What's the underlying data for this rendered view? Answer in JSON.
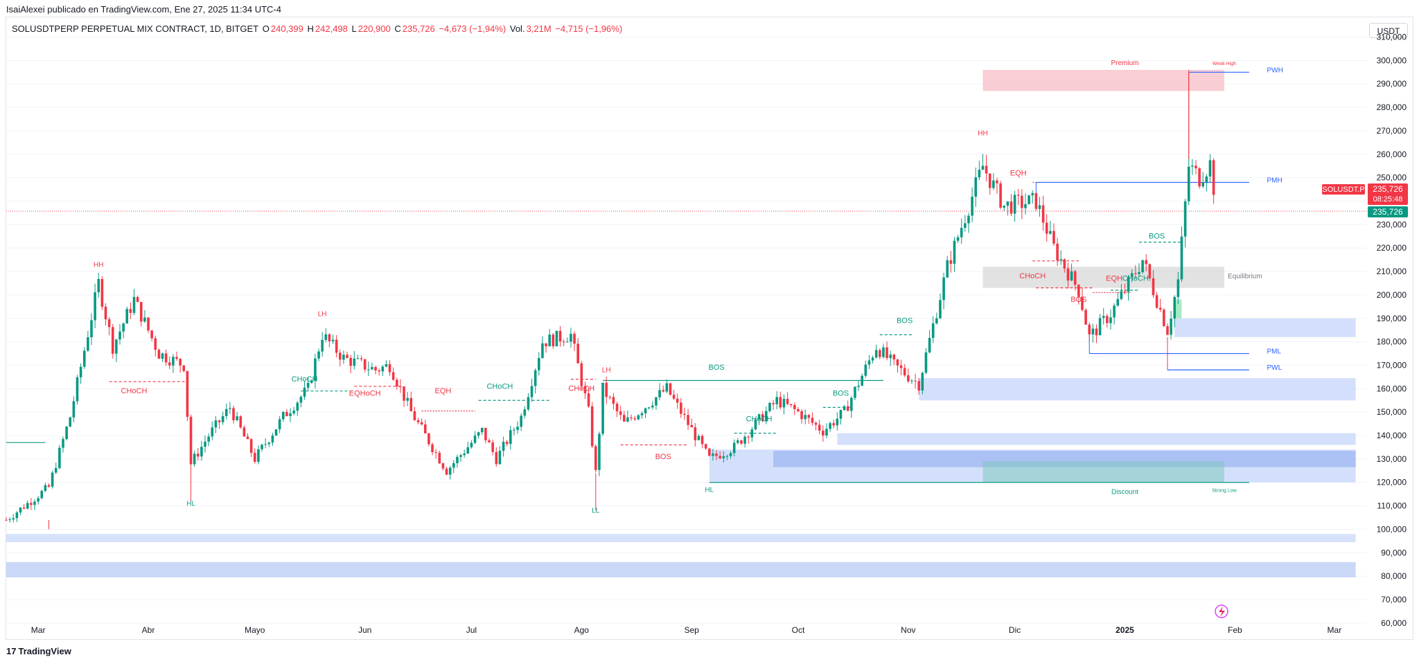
{
  "header": {
    "published_line": "IsaiAlexei publicado en TradingView.com, Ene 27, 2025 11:34 UTC-4",
    "symbol_line": "SOLUSDTPERP PERPETUAL MIX CONTRACT, 1D, BITGET",
    "ohlc": {
      "o_label": "O",
      "o_value": "240,399",
      "h_label": "H",
      "h_value": "242,498",
      "l_label": "L",
      "l_value": "220,900",
      "c_label": "C",
      "c_value": "235,726",
      "change": "−4,673 (−1,94%)"
    },
    "vol_label": "Vol.",
    "vol_value": "3,21M",
    "vol_change": "−4,715 (−1,96%)",
    "currency_button": "USDT"
  },
  "footer": {
    "logo_text": "TradingView",
    "logo_mark": "17"
  },
  "colors": {
    "up": "#089981",
    "down": "#f23645",
    "blue_line": "#2962ff",
    "premium_zone": "#f8c6cc",
    "equilibrium_zone": "#d6d6d6",
    "ob_zone": "#c5d5f9",
    "ob_dark": "#8aa8ef"
  },
  "chart_data": {
    "type": "candlestick",
    "symbol": "SOLUSDTPERP",
    "timeframe": "1D",
    "y_axis": {
      "ticks": [
        "310,000",
        "300,000",
        "290,000",
        "280,000",
        "270,000",
        "260,000",
        "250,000",
        "240,000",
        "230,000",
        "220,000",
        "210,000",
        "200,000",
        "190,000",
        "180,000",
        "170,000",
        "160,000",
        "150,000",
        "140,000",
        "130,000",
        "120,000",
        "110,000",
        "100,000",
        "90,000",
        "80,000",
        "70,000",
        "60,000"
      ],
      "tick_values": [
        310,
        300,
        290,
        280,
        270,
        260,
        250,
        240,
        230,
        220,
        210,
        200,
        190,
        180,
        170,
        160,
        150,
        140,
        130,
        120,
        110,
        100,
        90,
        80,
        70,
        60
      ],
      "range": [
        57,
        314
      ]
    },
    "x_axis": {
      "ticks": [
        "Mar",
        "Abr",
        "Mayo",
        "Jun",
        "Jul",
        "Ago",
        "Sep",
        "Oct",
        "Nov",
        "Dic",
        "2025",
        "Feb",
        "Mar"
      ],
      "tick_dates": [
        "2024-03-01",
        "2024-04-01",
        "2024-05-01",
        "2024-06-01",
        "2024-07-01",
        "2024-08-01",
        "2024-09-01",
        "2024-10-01",
        "2024-11-01",
        "2024-12-01",
        "2025-01-01",
        "2025-02-01",
        "2025-03-01"
      ],
      "range": [
        "2024-02-21",
        "2025-03-10"
      ]
    },
    "price_path": [
      [
        "2024-02-21",
        104
      ],
      [
        "2024-03-04",
        118
      ],
      [
        "2024-03-10",
        148
      ],
      [
        "2024-03-18",
        205
      ],
      [
        "2024-03-22",
        178
      ],
      [
        "2024-03-28",
        198
      ],
      [
        "2024-04-04",
        175
      ],
      [
        "2024-04-11",
        170
      ],
      [
        "2024-04-13",
        128
      ],
      [
        "2024-04-18",
        140
      ],
      [
        "2024-04-24",
        152
      ],
      [
        "2024-05-01",
        130
      ],
      [
        "2024-05-09",
        148
      ],
      [
        "2024-05-16",
        160
      ],
      [
        "2024-05-20",
        183
      ],
      [
        "2024-05-26",
        173
      ],
      [
        "2024-06-04",
        168
      ],
      [
        "2024-06-08",
        170
      ],
      [
        "2024-06-14",
        150
      ],
      [
        "2024-06-24",
        125
      ],
      [
        "2024-07-04",
        142
      ],
      [
        "2024-07-08",
        130
      ],
      [
        "2024-07-15",
        148
      ],
      [
        "2024-07-21",
        180
      ],
      [
        "2024-07-29",
        183
      ],
      [
        "2024-08-03",
        150
      ],
      [
        "2024-08-05",
        124
      ],
      [
        "2024-08-07",
        160
      ],
      [
        "2024-08-13",
        145
      ],
      [
        "2024-08-25",
        160
      ],
      [
        "2024-09-06",
        130
      ],
      [
        "2024-09-13",
        135
      ],
      [
        "2024-09-25",
        155
      ],
      [
        "2024-10-01",
        150
      ],
      [
        "2024-10-08",
        142
      ],
      [
        "2024-10-14",
        150
      ],
      [
        "2024-10-23",
        178
      ],
      [
        "2024-10-28",
        170
      ],
      [
        "2024-11-04",
        162
      ],
      [
        "2024-11-12",
        212
      ],
      [
        "2024-11-22",
        255
      ],
      [
        "2024-11-28",
        238
      ],
      [
        "2024-12-07",
        240
      ],
      [
        "2024-12-12",
        220
      ],
      [
        "2024-12-19",
        202
      ],
      [
        "2024-12-22",
        182
      ],
      [
        "2024-12-28",
        192
      ],
      [
        "2025-01-06",
        215
      ],
      [
        "2025-01-13",
        185
      ],
      [
        "2025-01-16",
        206
      ],
      [
        "2025-01-19",
        255
      ],
      [
        "2025-01-22",
        250
      ],
      [
        "2025-01-25",
        256
      ],
      [
        "2025-01-27",
        235.726
      ]
    ],
    "last_price": "235,726",
    "countdown": "08:25:48",
    "symbol_tag": "SOLUSDT.P",
    "annotations": [
      {
        "text": "HH",
        "date": "2024-03-18",
        "price": 212,
        "color": "down"
      },
      {
        "text": "CHoCH",
        "date": "2024-03-28",
        "price": 158,
        "color": "down"
      },
      {
        "text": "HL",
        "date": "2024-04-13",
        "price": 110,
        "color": "up"
      },
      {
        "text": "LH",
        "date": "2024-05-20",
        "price": 191,
        "color": "down"
      },
      {
        "text": "CHoCH",
        "date": "2024-05-15",
        "price": 163,
        "color": "up"
      },
      {
        "text": "EQHoCH",
        "date": "2024-06-01",
        "price": 157,
        "color": "mixed"
      },
      {
        "text": "EQH",
        "date": "2024-06-23",
        "price": 158,
        "color": "down"
      },
      {
        "text": "CHoCH",
        "date": "2024-07-09",
        "price": 160,
        "color": "up"
      },
      {
        "text": "CHoCH",
        "date": "2024-08-01",
        "price": 159,
        "color": "down"
      },
      {
        "text": "LH",
        "date": "2024-08-08",
        "price": 167,
        "color": "down"
      },
      {
        "text": "LL",
        "date": "2024-08-05",
        "price": 107,
        "color": "up"
      },
      {
        "text": "BOS",
        "date": "2024-09-08",
        "price": 168,
        "color": "up"
      },
      {
        "text": "BOS",
        "date": "2024-08-24",
        "price": 130,
        "color": "down"
      },
      {
        "text": "HL",
        "date": "2024-09-06",
        "price": 116,
        "color": "up"
      },
      {
        "text": "CHoCH",
        "date": "2024-09-20",
        "price": 146,
        "color": "up"
      },
      {
        "text": "BOS",
        "date": "2024-10-13",
        "price": 157,
        "color": "up"
      },
      {
        "text": "BOS",
        "date": "2024-10-31",
        "price": 188,
        "color": "up"
      },
      {
        "text": "HH",
        "date": "2024-11-22",
        "price": 268,
        "color": "down"
      },
      {
        "text": "EQH",
        "date": "2024-12-02",
        "price": 251,
        "color": "down"
      },
      {
        "text": "CHoCH",
        "date": "2024-12-06",
        "price": 207,
        "color": "down"
      },
      {
        "text": "BOS",
        "date": "2024-12-19",
        "price": 197,
        "color": "down"
      },
      {
        "text": "EQH",
        "date": "2024-12-29",
        "price": 206,
        "color": "down"
      },
      {
        "text": "CHoCH",
        "date": "2025-01-04",
        "price": 206,
        "color": "up"
      },
      {
        "text": "BOS",
        "date": "2025-01-10",
        "price": 224,
        "color": "up"
      },
      {
        "text": "Premium",
        "date": "2025-01-01",
        "price": 298,
        "color": "down"
      },
      {
        "text": "Weak High",
        "date": "2025-01-29",
        "price": 298,
        "color": "down"
      },
      {
        "text": "PWH",
        "date": "2025-02-10",
        "price": 295,
        "color": "blue"
      },
      {
        "text": "PMH",
        "date": "2025-02-10",
        "price": 248,
        "color": "blue"
      },
      {
        "text": "Equilibrium",
        "date": "2025-01-30",
        "price": 207,
        "color": "grey"
      },
      {
        "text": "PML",
        "date": "2025-02-10",
        "price": 175,
        "color": "blue"
      },
      {
        "text": "PWL",
        "date": "2025-02-10",
        "price": 168,
        "color": "blue"
      },
      {
        "text": "Discount",
        "date": "2025-01-01",
        "price": 115,
        "color": "up"
      },
      {
        "text": "Strong Low",
        "date": "2025-01-29",
        "price": 116,
        "color": "up"
      }
    ]
  }
}
